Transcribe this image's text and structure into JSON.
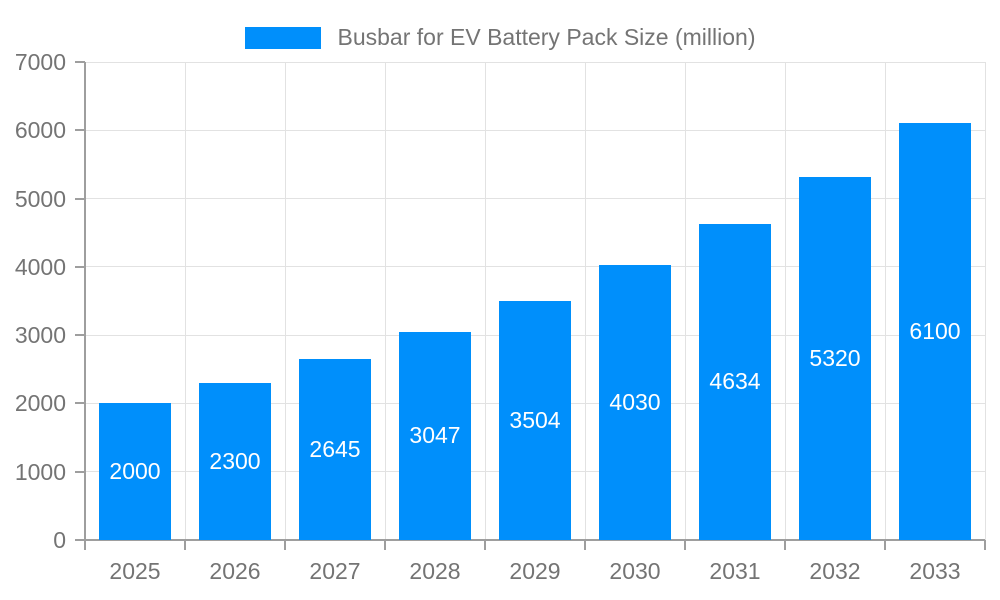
{
  "chart_data": {
    "type": "bar",
    "title": "",
    "legend": "Busbar for EV Battery Pack Size (million)",
    "legend_position": "top",
    "categories": [
      "2025",
      "2026",
      "2027",
      "2028",
      "2029",
      "2030",
      "2031",
      "2032",
      "2033"
    ],
    "series": [
      {
        "name": "Busbar for EV Battery Pack Size (million)",
        "values": [
          2000,
          2300,
          2645,
          3047,
          3504,
          4030,
          4634,
          5320,
          6100
        ]
      }
    ],
    "xlabel": "",
    "ylabel": "",
    "ylim": [
      0,
      7000
    ],
    "yticks": [
      0,
      1000,
      2000,
      3000,
      4000,
      5000,
      6000,
      7000
    ],
    "grid": "on",
    "colors": {
      "bar": "#008FFB",
      "bar_label": "#ffffff",
      "axis_line": "#9e9e9e",
      "grid_line": "#e2e2e2",
      "text": "#747474",
      "background": "#ffffff"
    }
  }
}
